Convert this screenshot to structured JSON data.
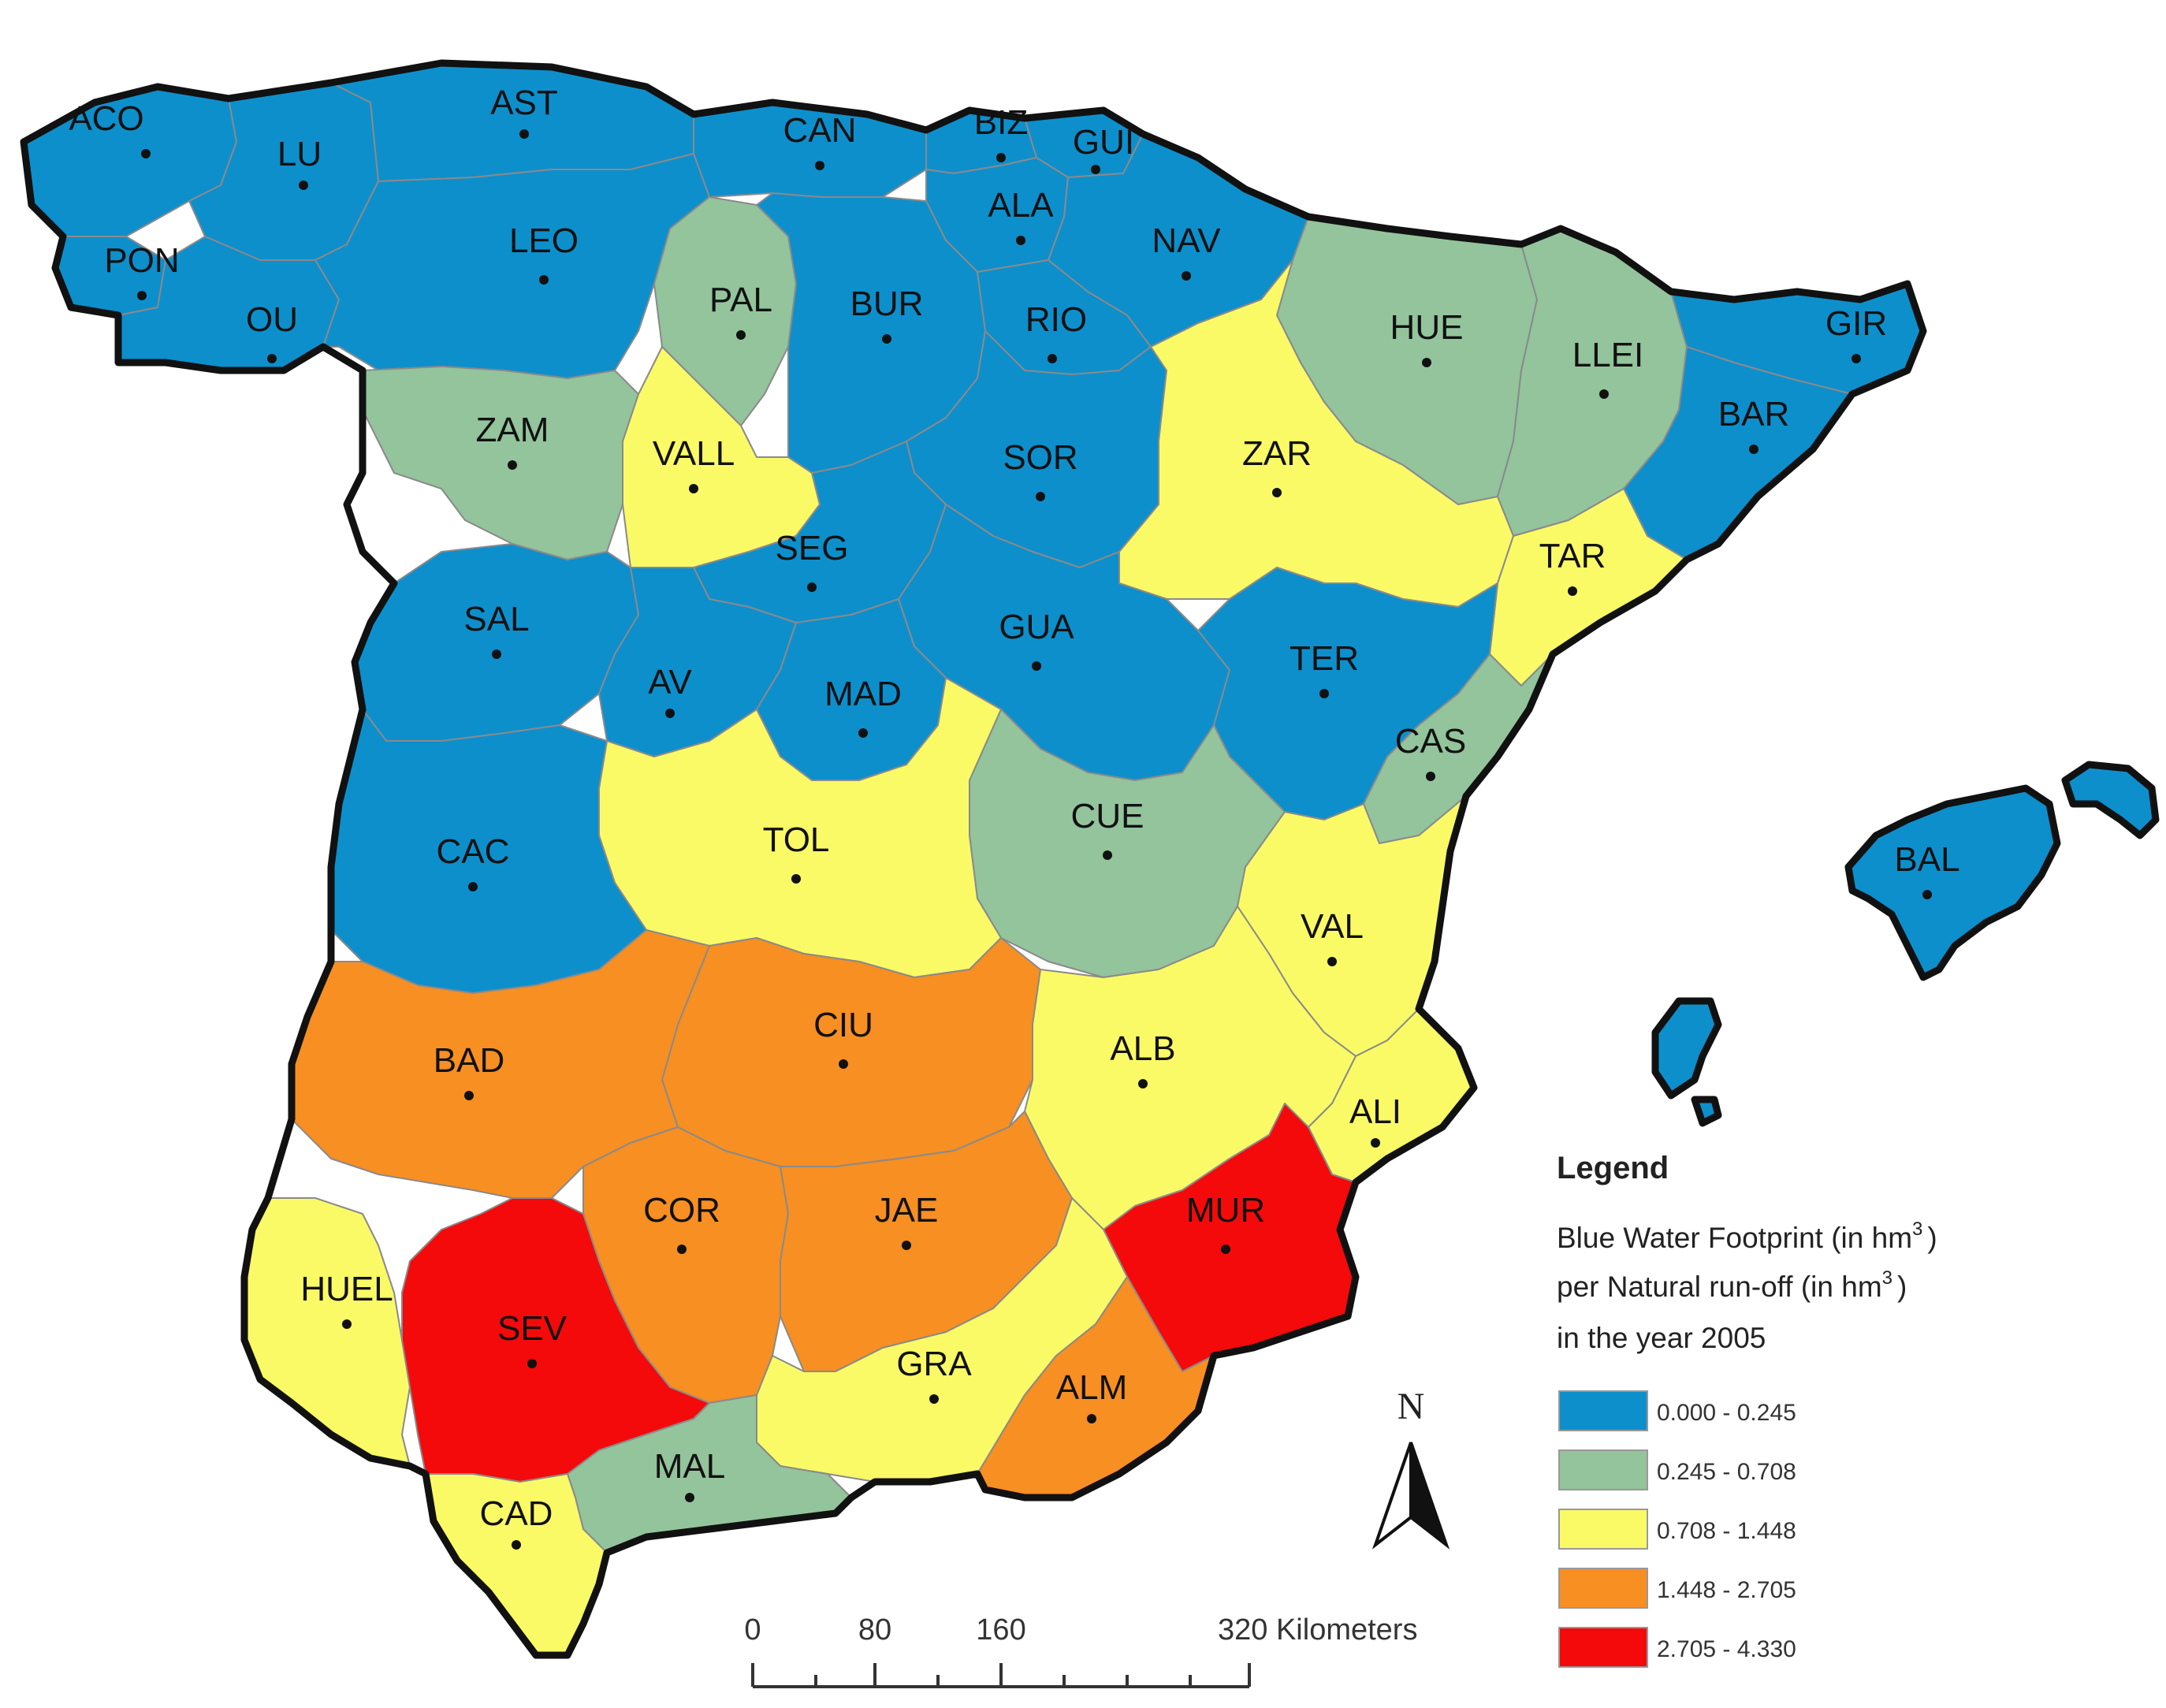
{
  "legend": {
    "title": "Legend",
    "subtitle_line1": "Blue Water Footprint (in hm",
    "subtitle_line2": "per Natural run-off  (in hm",
    "subtitle_line3": "in the year 2005",
    "superscript": "3",
    "close_paren": ")",
    "classes": [
      {
        "label": "0.000 - 0.245",
        "color": "#0d8fcc"
      },
      {
        "label": "0.245 - 0.708",
        "color": "#93c49c"
      },
      {
        "label": "0.708 - 1.448",
        "color": "#fafa66"
      },
      {
        "label": "1.448 - 2.705",
        "color": "#f78f22"
      },
      {
        "label": "2.705 - 4.330",
        "color": "#f40a0a"
      }
    ]
  },
  "north_arrow": {
    "label": "N"
  },
  "scale_bar": {
    "ticks": [
      "0",
      "80",
      "160",
      "320 Kilometers"
    ]
  },
  "provinces": [
    {
      "code": "ACO",
      "class": 0
    },
    {
      "code": "LU",
      "class": 0
    },
    {
      "code": "AST",
      "class": 0
    },
    {
      "code": "CAN",
      "class": 0
    },
    {
      "code": "BIZ",
      "class": 0
    },
    {
      "code": "GUI",
      "class": 0
    },
    {
      "code": "ALA",
      "class": 0
    },
    {
      "code": "NAV",
      "class": 0
    },
    {
      "code": "PON",
      "class": 0
    },
    {
      "code": "OU",
      "class": 0
    },
    {
      "code": "LEO",
      "class": 0
    },
    {
      "code": "PAL",
      "class": 1
    },
    {
      "code": "BUR",
      "class": 0
    },
    {
      "code": "RIO",
      "class": 0
    },
    {
      "code": "HUE",
      "class": 1
    },
    {
      "code": "LLEI",
      "class": 1
    },
    {
      "code": "GIR",
      "class": 0
    },
    {
      "code": "BAR",
      "class": 0
    },
    {
      "code": "ZAM",
      "class": 1
    },
    {
      "code": "VALL",
      "class": 2
    },
    {
      "code": "SOR",
      "class": 0
    },
    {
      "code": "ZAR",
      "class": 2
    },
    {
      "code": "SEG",
      "class": 0
    },
    {
      "code": "TAR",
      "class": 2
    },
    {
      "code": "SAL",
      "class": 0
    },
    {
      "code": "GUA",
      "class": 0
    },
    {
      "code": "TER",
      "class": 0
    },
    {
      "code": "AV",
      "class": 0
    },
    {
      "code": "MAD",
      "class": 0
    },
    {
      "code": "CAS",
      "class": 1
    },
    {
      "code": "CUE",
      "class": 1
    },
    {
      "code": "BAL",
      "class": 0
    },
    {
      "code": "TOL",
      "class": 2
    },
    {
      "code": "CAC",
      "class": 0
    },
    {
      "code": "VAL",
      "class": 2
    },
    {
      "code": "CIU",
      "class": 3
    },
    {
      "code": "BAD",
      "class": 3
    },
    {
      "code": "ALB",
      "class": 2
    },
    {
      "code": "ALI",
      "class": 2
    },
    {
      "code": "COR",
      "class": 3
    },
    {
      "code": "JAE",
      "class": 3
    },
    {
      "code": "MUR",
      "class": 4
    },
    {
      "code": "HUEL",
      "class": 2
    },
    {
      "code": "SEV",
      "class": 4
    },
    {
      "code": "GRA",
      "class": 2
    },
    {
      "code": "ALM",
      "class": 3
    },
    {
      "code": "MAL",
      "class": 1
    },
    {
      "code": "CAD",
      "class": 2
    }
  ]
}
